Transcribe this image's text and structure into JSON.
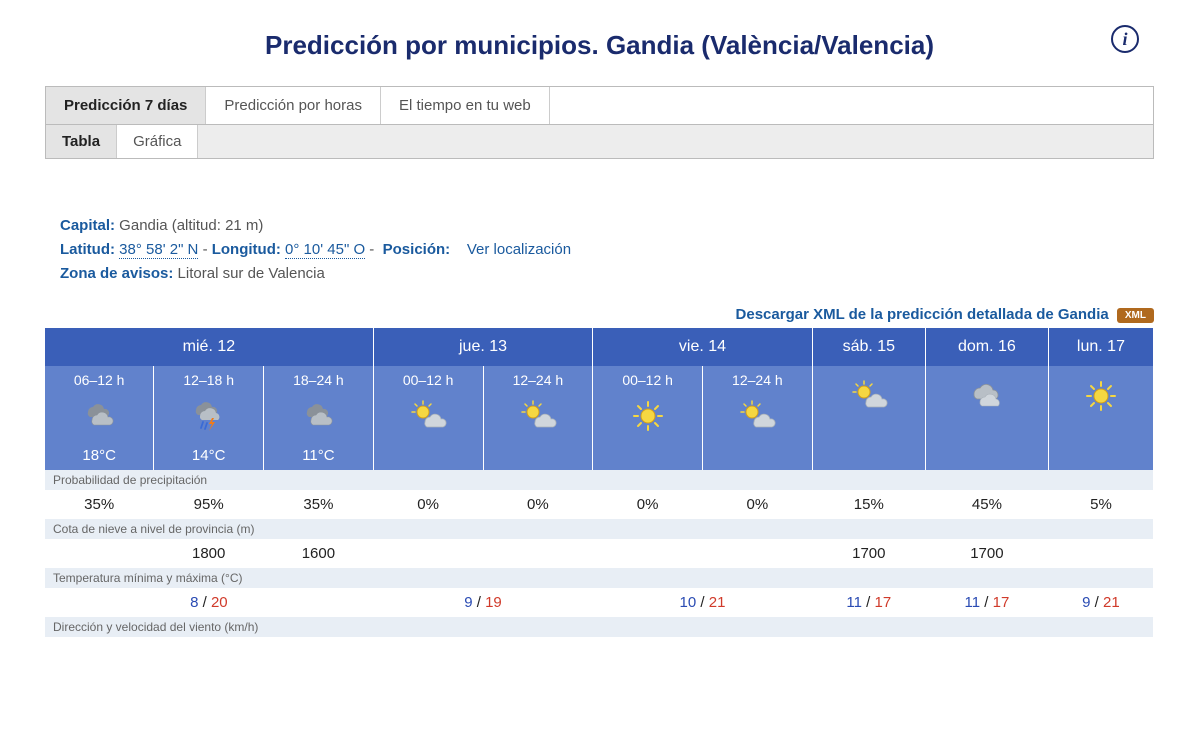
{
  "title": "Predicción por municipios. Gandia (València/Valencia)",
  "tabs": {
    "main": [
      "Predicción 7 días",
      "Predicción por horas",
      "El tiempo en tu web"
    ],
    "main_active": 0,
    "sub": [
      "Tabla",
      "Gráfica"
    ],
    "sub_active": 0
  },
  "meta": {
    "capital_label": "Capital:",
    "capital_value": " Gandia (altitud: 21 m)",
    "lat_label": "Latitud:",
    "lat_value": "38° 58' 2\" N",
    "lon_label": "Longitud:",
    "lon_value": "0° 10' 45\" O",
    "pos_label": "Posición:",
    "pos_link": "Ver localización",
    "zona_label": "Zona de avisos:",
    "zona_value": " Litoral sur de Valencia"
  },
  "xml": {
    "text": "Descargar XML de la predicción detallada de Gandia",
    "badge": "XML"
  },
  "columns": [
    {
      "day": "mié. 12",
      "periods": [
        {
          "label": "06–12 h",
          "icon": "cloudy",
          "temp": "18°C"
        },
        {
          "label": "12–18 h",
          "icon": "storm",
          "temp": "14°C"
        },
        {
          "label": "18–24 h",
          "icon": "cloudy",
          "temp": "11°C"
        }
      ]
    },
    {
      "day": "jue. 13",
      "periods": [
        {
          "label": "00–12 h",
          "icon": "sun-cloud"
        },
        {
          "label": "12–24 h",
          "icon": "sun-cloud"
        }
      ]
    },
    {
      "day": "vie. 14",
      "periods": [
        {
          "label": "00–12 h",
          "icon": "sun"
        },
        {
          "label": "12–24 h",
          "icon": "sun-cloud"
        }
      ]
    },
    {
      "day": "sáb. 15",
      "periods": [
        {
          "icon": "sun-cloud"
        }
      ]
    },
    {
      "day": "dom. 16",
      "periods": [
        {
          "icon": "overcast"
        }
      ]
    },
    {
      "day": "lun. 17",
      "periods": [
        {
          "icon": "sun"
        }
      ]
    }
  ],
  "rows": {
    "precip_label": "Probabilidad de precipitación",
    "precip": [
      "35%",
      "95%",
      "35%",
      "0%",
      "0%",
      "0%",
      "0%",
      "15%",
      "45%",
      "5%"
    ],
    "snow_label": "Cota de nieve a nivel de provincia (m)",
    "snow": [
      "",
      "1800",
      "1600",
      "",
      "",
      "",
      "",
      "1700",
      "1700",
      ""
    ],
    "temp_label": "Temperatura mínima y máxima (°C)",
    "temp": [
      {
        "span": 3,
        "min": "8",
        "max": "20"
      },
      {
        "span": 2,
        "min": "9",
        "max": "19"
      },
      {
        "span": 2,
        "min": "10",
        "max": "21"
      },
      {
        "span": 1,
        "min": "11",
        "max": "17"
      },
      {
        "span": 1,
        "min": "11",
        "max": "17"
      },
      {
        "span": 1,
        "min": "9",
        "max": "21"
      }
    ],
    "wind_label": "Dirección y velocidad del viento (km/h)"
  },
  "icons": {
    "colors": {
      "sun_fill": "#f5d742",
      "sun_stroke": "#d4a017",
      "cloud_fill": "#a8b0b8",
      "cloud_dark": "#8a9199",
      "cloud_light": "#d0d6dc",
      "bolt": "#f07b1a",
      "rain": "#3a6bd6"
    }
  }
}
